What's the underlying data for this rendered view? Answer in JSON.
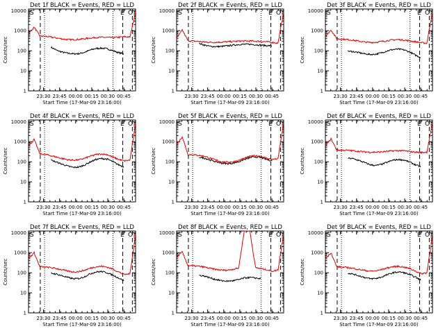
{
  "colors": {
    "black_series": "#000000",
    "red_series": "#e00000"
  },
  "shared": {
    "ylabel": "Counts/sec",
    "xlabel": "Start Time (17-Mar-09 23:16:00)",
    "yticks": [
      "1",
      "10",
      "100",
      "1000",
      "10000"
    ],
    "xticks": [
      "23:30",
      "23:45",
      "00:00",
      "00:15",
      "00:30",
      "00:45"
    ],
    "xlim": [
      "23:16",
      "00:56"
    ],
    "ylim": [
      1,
      12000
    ],
    "yscale": "log",
    "markers": {
      "left": "S",
      "right_1": "E",
      "right_2": "O"
    }
  },
  "chart_data": [
    {
      "id": "det1",
      "type": "line",
      "title": "Det 1f BLACK = Events, RED = LLD",
      "series": [
        {
          "name": "BLACK",
          "color": "#000000",
          "values": [
            null,
            null,
            null,
            null,
            150,
            105,
            85,
            75,
            70,
            72,
            85,
            110,
            130,
            135,
            125,
            100,
            80,
            70,
            null,
            null
          ]
        },
        {
          "name": "RED",
          "color": "#e00000",
          "values": [
            700,
            1500,
            550,
            520,
            480,
            430,
            390,
            360,
            360,
            370,
            400,
            430,
            460,
            470,
            460,
            450,
            470,
            500,
            480,
            9000
          ]
        }
      ],
      "vlines": {
        "dashed": [
          "23:27",
          "00:44"
        ],
        "dotted": [
          "23:31",
          "00:35"
        ]
      }
    },
    {
      "id": "det2",
      "type": "line",
      "title": "Det 2f BLACK = Events, RED = LLD",
      "series": [
        {
          "name": "BLACK",
          "color": "#000000",
          "values": [
            null,
            null,
            null,
            null,
            230,
            190,
            165,
            160,
            165,
            175,
            190,
            205,
            210,
            210,
            200,
            190,
            180,
            175,
            null,
            null
          ]
        },
        {
          "name": "RED",
          "color": "#e00000",
          "values": [
            400,
            1100,
            320,
            300,
            290,
            270,
            265,
            265,
            270,
            280,
            290,
            300,
            305,
            305,
            300,
            290,
            280,
            260,
            240,
            9000
          ]
        }
      ],
      "vlines": {
        "dashed": [
          "23:27",
          "00:44"
        ],
        "dotted": [
          "23:31",
          "00:35"
        ]
      }
    },
    {
      "id": "det3",
      "type": "line",
      "title": "Det 3f BLACK = Events, RED = LLD",
      "series": [
        {
          "name": "BLACK",
          "color": "#000000",
          "values": [
            null,
            null,
            null,
            null,
            95,
            90,
            80,
            70,
            65,
            68,
            80,
            100,
            115,
            120,
            110,
            85,
            60,
            45,
            null,
            null
          ]
        },
        {
          "name": "RED",
          "color": "#e00000",
          "values": [
            500,
            1100,
            400,
            380,
            360,
            330,
            300,
            270,
            260,
            265,
            290,
            320,
            350,
            360,
            340,
            310,
            280,
            250,
            240,
            9000
          ]
        }
      ],
      "vlines": {
        "dashed": [
          "23:27",
          "00:44"
        ],
        "dotted": [
          "23:31",
          "00:35"
        ]
      }
    },
    {
      "id": "det4",
      "type": "line",
      "title": "Det 4f BLACK = Events, RED = LLD",
      "series": [
        {
          "name": "BLACK",
          "color": "#000000",
          "values": [
            null,
            null,
            null,
            null,
            120,
            95,
            75,
            60,
            52,
            55,
            70,
            100,
            130,
            145,
            135,
            100,
            70,
            55,
            null,
            null
          ]
        },
        {
          "name": "RED",
          "color": "#e00000",
          "values": [
            600,
            1300,
            250,
            230,
            200,
            170,
            145,
            125,
            120,
            125,
            150,
            190,
            230,
            245,
            225,
            170,
            130,
            110,
            120,
            8000
          ]
        }
      ],
      "vlines": {
        "dashed": [
          "23:27",
          "00:44"
        ],
        "dotted": [
          "23:31",
          "00:35"
        ]
      }
    },
    {
      "id": "det5",
      "type": "line",
      "title": "Det 5f BLACK = Events, RED = LLD",
      "series": [
        {
          "name": "BLACK",
          "color": "#000000",
          "values": [
            null,
            null,
            null,
            null,
            170,
            150,
            120,
            100,
            85,
            80,
            85,
            100,
            130,
            160,
            175,
            160,
            130,
            110,
            null,
            null
          ]
        },
        {
          "name": "RED",
          "color": "#e00000",
          "values": [
            700,
            1800,
            230,
            220,
            210,
            185,
            150,
            120,
            100,
            95,
            100,
            115,
            150,
            185,
            200,
            185,
            150,
            130,
            140,
            9000
          ]
        }
      ],
      "vlines": {
        "dashed": [
          "23:27",
          "00:44"
        ],
        "dotted": [
          "23:31",
          "00:35"
        ]
      }
    },
    {
      "id": "det6",
      "type": "line",
      "title": "Det 6f BLACK = Events, RED = LLD",
      "series": [
        {
          "name": "BLACK",
          "color": "#000000",
          "values": [
            null,
            null,
            null,
            null,
            150,
            140,
            115,
            90,
            70,
            65,
            75,
            95,
            120,
            130,
            120,
            95,
            70,
            55,
            null,
            null
          ]
        },
        {
          "name": "RED",
          "color": "#e00000",
          "values": [
            600,
            1400,
            380,
            380,
            370,
            350,
            330,
            310,
            300,
            300,
            310,
            330,
            350,
            360,
            350,
            320,
            300,
            290,
            300,
            9000
          ]
        }
      ],
      "vlines": {
        "dashed": [
          "23:27",
          "00:44"
        ],
        "dotted": [
          "23:31",
          "00:35"
        ]
      }
    },
    {
      "id": "det7",
      "type": "line",
      "title": "Det 7f BLACK = Events, RED = LLD",
      "series": [
        {
          "name": "BLACK",
          "color": "#000000",
          "values": [
            null,
            null,
            null,
            null,
            95,
            85,
            70,
            58,
            50,
            52,
            65,
            90,
            110,
            115,
            100,
            75,
            55,
            40,
            null,
            null
          ]
        },
        {
          "name": "RED",
          "color": "#e00000",
          "values": [
            500,
            1000,
            200,
            190,
            180,
            160,
            140,
            120,
            110,
            115,
            135,
            170,
            200,
            210,
            190,
            150,
            110,
            80,
            90,
            8000
          ]
        }
      ],
      "vlines": {
        "dashed": [
          "23:27",
          "00:44"
        ],
        "dotted": [
          "23:31",
          "00:35"
        ]
      }
    },
    {
      "id": "det8",
      "type": "line",
      "title": "Det 8f BLACK = Events, RED = LLD",
      "series": [
        {
          "name": "BLACK",
          "color": "#000000",
          "values": [
            null,
            null,
            null,
            null,
            75,
            68,
            55,
            46,
            40,
            38,
            40,
            45,
            55,
            58,
            55,
            50,
            null,
            null,
            null,
            null
          ]
        },
        {
          "name": "RED",
          "color": "#e00000",
          "values": [
            600,
            1100,
            230,
            220,
            210,
            190,
            165,
            145,
            135,
            135,
            150,
            170,
            12000,
            12000,
            180,
            160,
            140,
            120,
            140,
            9000
          ]
        }
      ],
      "vlines": {
        "dashed": [
          "23:27",
          "00:44"
        ],
        "dotted": [
          "23:31",
          "00:35"
        ]
      }
    },
    {
      "id": "det9",
      "type": "line",
      "title": "Det 9f BLACK = Events, RED = LLD",
      "series": [
        {
          "name": "BLACK",
          "color": "#000000",
          "values": [
            null,
            null,
            null,
            null,
            95,
            85,
            70,
            58,
            50,
            52,
            62,
            80,
            100,
            110,
            100,
            80,
            60,
            42,
            null,
            null
          ]
        },
        {
          "name": "RED",
          "color": "#e00000",
          "values": [
            500,
            1000,
            200,
            190,
            180,
            165,
            145,
            130,
            120,
            125,
            145,
            175,
            200,
            210,
            190,
            160,
            120,
            90,
            100,
            8000
          ]
        }
      ],
      "vlines": {
        "dashed": [
          "23:27",
          "00:44"
        ],
        "dotted": [
          "23:31",
          "00:35"
        ]
      }
    }
  ]
}
